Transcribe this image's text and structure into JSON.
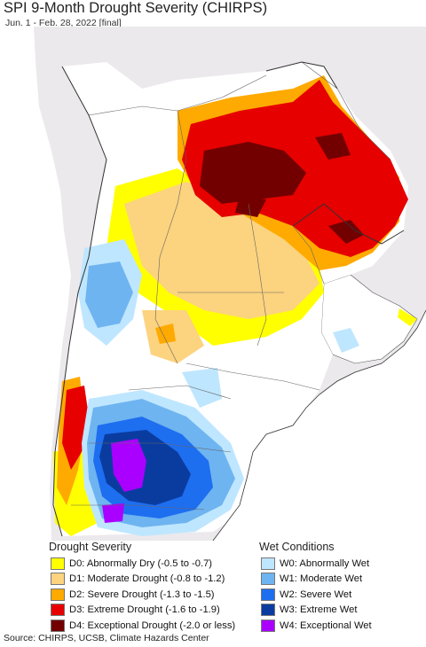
{
  "title": "SPI 9-Month Drought Severity (CHIRPS)",
  "subtitle": "Jun. 1 - Feb. 28, 2022 [final]",
  "legend": {
    "drought_heading": "Drought Severity",
    "wet_heading": "Wet Conditions",
    "drought_items": [
      {
        "label": "D0: Abnormally Dry (-0.5 to -0.7)",
        "color": "#ffff00"
      },
      {
        "label": "D1: Moderate Drought (-0.8 to -1.2)",
        "color": "#fcd37f"
      },
      {
        "label": "D2: Severe Drought (-1.3 to -1.5)",
        "color": "#ffaa00"
      },
      {
        "label": "D3: Extreme Drought (-1.6 to -1.9)",
        "color": "#e60000"
      },
      {
        "label": "D4: Exceptional Drought (-2.0 or less)",
        "color": "#730000"
      }
    ],
    "wet_items": [
      {
        "label": "W0: Abnormally Wet",
        "color": "#bfe6ff"
      },
      {
        "label": "W1: Moderate Wet",
        "color": "#6eb4f0"
      },
      {
        "label": "W2: Severe Wet",
        "color": "#1e6ef0"
      },
      {
        "label": "W3: Extreme Wet",
        "color": "#0a3ca0"
      },
      {
        "label": "W4: Exceptional Wet",
        "color": "#aa00ff"
      }
    ]
  },
  "source": "Source: CHIRPS, UCSB, Climate Hazards Center"
}
